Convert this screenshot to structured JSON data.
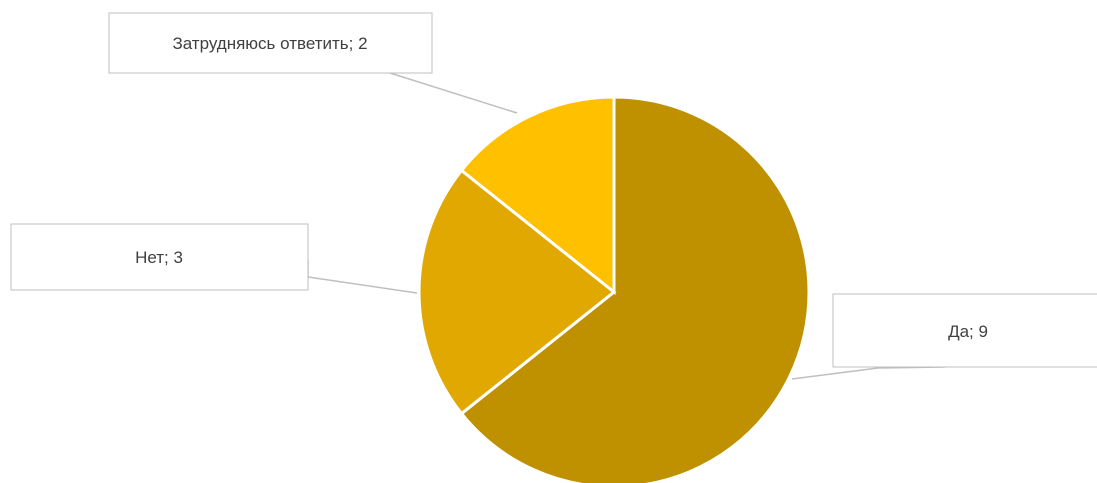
{
  "chart_data": {
    "type": "pie",
    "categories": [
      "Да",
      "Нет",
      "Затрудняюсь ответить"
    ],
    "values": [
      9,
      3,
      2
    ],
    "colors": [
      "#bf9000",
      "#e0a800",
      "#ffc000"
    ],
    "data_labels": [
      "Да; 9",
      "Нет; 3",
      "Затрудняюсь ответить; 2"
    ],
    "start_angle": "12 o'clock",
    "direction": "clockwise",
    "legend": "none",
    "title": ""
  }
}
